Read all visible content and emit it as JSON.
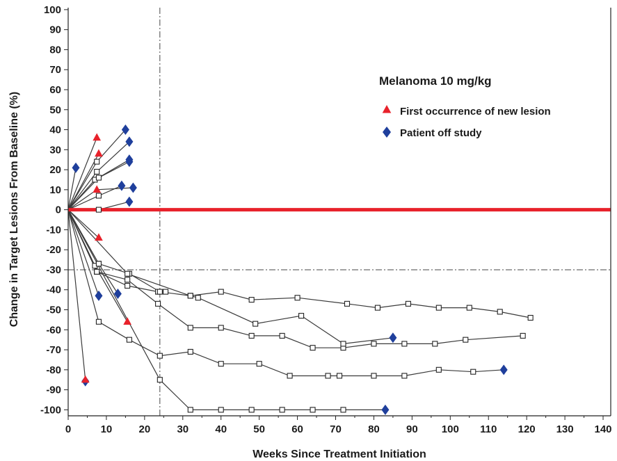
{
  "chart_data": {
    "type": "line",
    "title": "",
    "xlabel": "Weeks Since Treatment Initiation",
    "ylabel": "Change in Target Lesions From Baseline (%)",
    "xlim": [
      0,
      142
    ],
    "ylim": [
      -103,
      101
    ],
    "xticks": [
      0,
      10,
      20,
      30,
      40,
      50,
      60,
      70,
      80,
      90,
      100,
      110,
      120,
      130,
      140
    ],
    "yticks": [
      100,
      90,
      80,
      70,
      60,
      50,
      40,
      30,
      20,
      10,
      0,
      -10,
      -20,
      -30,
      -40,
      -50,
      -60,
      -70,
      -80,
      -90,
      -100
    ],
    "grid": false,
    "reference_lines": {
      "baseline_y": 0,
      "response_threshold_y": -30,
      "vertical_x": 24
    },
    "legend": {
      "placement": "top-right",
      "title": "Melanoma 10 mg/kg",
      "entries": [
        {
          "label": "First occurrence of new lesion",
          "marker": "triangle",
          "color": "#e8222b"
        },
        {
          "label": "Patient off study",
          "marker": "diamond",
          "color": "#1f3f9c"
        }
      ]
    },
    "colors": {
      "line": "#3a3a3a",
      "baseline": "#e8222b",
      "new_lesion": "#e8222b",
      "off_study": "#1f3f9c"
    },
    "series": [
      {
        "points": [
          [
            0,
            0
          ],
          [
            2,
            21
          ]
        ],
        "off_study_at": 1
      },
      {
        "points": [
          [
            0,
            0
          ],
          [
            7.5,
            36
          ]
        ],
        "new_lesion_at": 1
      },
      {
        "points": [
          [
            0,
            0
          ],
          [
            8,
            28
          ]
        ],
        "new_lesion_at": 1
      },
      {
        "points": [
          [
            0,
            0
          ],
          [
            7.5,
            24
          ],
          [
            15,
            40
          ]
        ],
        "off_study_at": 2
      },
      {
        "points": [
          [
            0,
            0
          ],
          [
            7.5,
            19
          ],
          [
            16,
            34
          ]
        ],
        "off_study_at": 2
      },
      {
        "points": [
          [
            0,
            0
          ],
          [
            7,
            15
          ],
          [
            16,
            25
          ]
        ],
        "off_study_at": 2
      },
      {
        "points": [
          [
            0,
            0
          ],
          [
            8,
            16
          ],
          [
            16,
            24
          ]
        ],
        "off_study_at": 2
      },
      {
        "points": [
          [
            0,
            0
          ],
          [
            8,
            7
          ],
          [
            14,
            12
          ]
        ],
        "off_study_at": 2
      },
      {
        "points": [
          [
            0,
            0
          ],
          [
            7.5,
            10
          ],
          [
            17,
            11
          ]
        ],
        "new_lesion_at": 1,
        "off_study_at": 2
      },
      {
        "points": [
          [
            0,
            0
          ],
          [
            8,
            0
          ],
          [
            16,
            4
          ]
        ],
        "off_study_at": 2
      },
      {
        "points": [
          [
            0,
            0
          ],
          [
            8,
            -14
          ]
        ],
        "new_lesion_at": 1
      },
      {
        "points": [
          [
            0,
            0
          ],
          [
            8,
            -43
          ]
        ],
        "off_study_at": 1
      },
      {
        "points": [
          [
            0,
            0
          ],
          [
            4.5,
            -85
          ]
        ],
        "new_lesion_at": 1,
        "off_study_at": 1
      },
      {
        "points": [
          [
            0,
            0
          ],
          [
            8,
            -27
          ],
          [
            13,
            -42
          ]
        ],
        "off_study_at": 2
      },
      {
        "points": [
          [
            0,
            0
          ],
          [
            7,
            -28
          ],
          [
            15.5,
            -56
          ]
        ],
        "new_lesion_at": 2
      },
      {
        "points": [
          [
            0,
            0
          ],
          [
            7.5,
            -31
          ],
          [
            15.5,
            -38
          ],
          [
            23.5,
            -41
          ],
          [
            25.5,
            -41
          ]
        ]
      },
      {
        "points": [
          [
            0,
            0
          ],
          [
            8,
            -27
          ],
          [
            16,
            -32
          ],
          [
            24,
            -41
          ],
          [
            32,
            -43
          ],
          [
            40,
            -41
          ],
          [
            48,
            -45
          ],
          [
            60,
            -44
          ],
          [
            73,
            -47
          ],
          [
            81,
            -49
          ],
          [
            89,
            -47
          ],
          [
            97,
            -49
          ],
          [
            105,
            -49
          ],
          [
            113,
            -51
          ],
          [
            121,
            -54
          ]
        ]
      },
      {
        "points": [
          [
            0,
            0
          ],
          [
            7.5,
            -31
          ],
          [
            15.5,
            -35
          ],
          [
            23.5,
            -47
          ],
          [
            32,
            -59
          ],
          [
            40,
            -59
          ],
          [
            48,
            -63
          ],
          [
            56,
            -63
          ],
          [
            64,
            -69
          ],
          [
            72,
            -69
          ],
          [
            80,
            -67
          ],
          [
            88,
            -67
          ],
          [
            96,
            -67
          ],
          [
            104,
            -65
          ],
          [
            119,
            -63
          ]
        ]
      },
      {
        "points": [
          [
            0,
            0
          ],
          [
            15.5,
            -32
          ],
          [
            32,
            -43
          ],
          [
            34,
            -44
          ],
          [
            49,
            -57
          ],
          [
            61,
            -53
          ],
          [
            72,
            -67
          ],
          [
            85,
            -64
          ]
        ],
        "off_study_at": 7
      },
      {
        "points": [
          [
            0,
            0
          ],
          [
            8,
            -56
          ],
          [
            16,
            -65
          ],
          [
            24,
            -73
          ],
          [
            32,
            -71
          ],
          [
            40,
            -77
          ],
          [
            50,
            -77
          ],
          [
            58,
            -83
          ],
          [
            68,
            -83
          ],
          [
            71,
            -83
          ],
          [
            80,
            -83
          ],
          [
            88,
            -83
          ],
          [
            97,
            -80
          ],
          [
            106,
            -81
          ],
          [
            114,
            -80
          ]
        ],
        "off_study_at": 14
      },
      {
        "points": [
          [
            0,
            0
          ],
          [
            24,
            -85
          ],
          [
            32,
            -100
          ],
          [
            40,
            -100
          ],
          [
            48,
            -100
          ],
          [
            56,
            -100
          ],
          [
            64,
            -100
          ],
          [
            72,
            -100
          ],
          [
            83,
            -100
          ]
        ],
        "off_study_at": 8
      }
    ]
  }
}
